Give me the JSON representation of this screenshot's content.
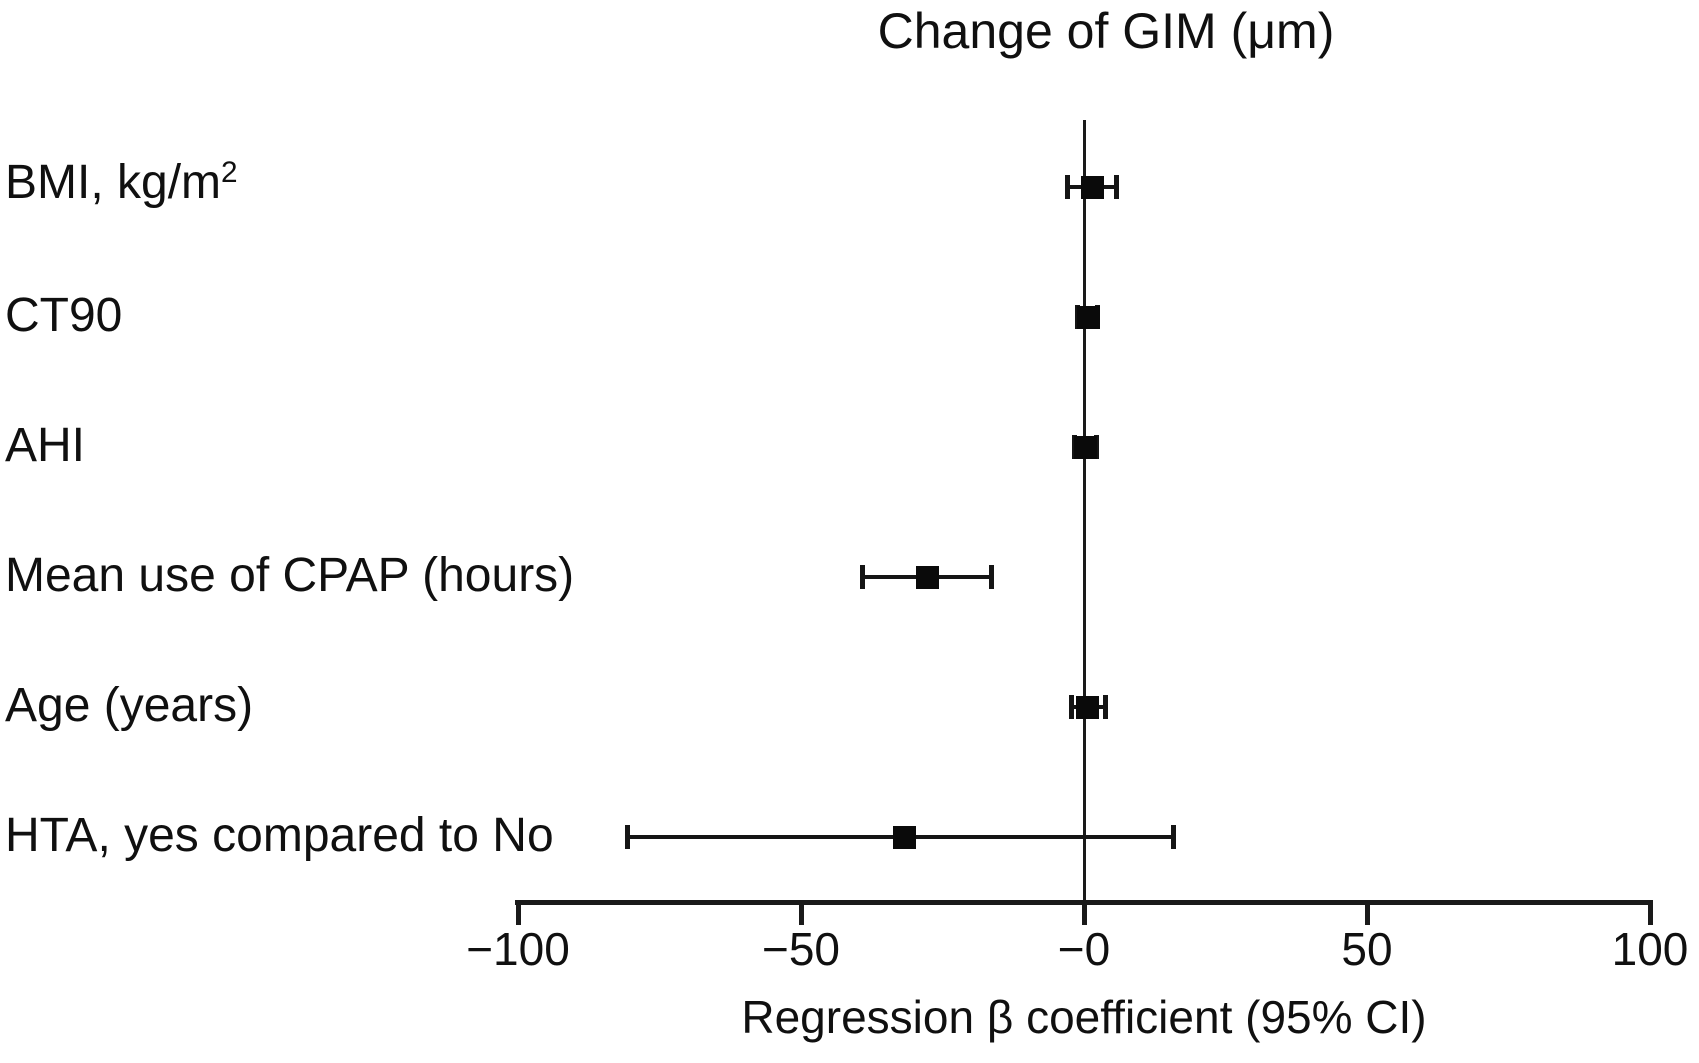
{
  "colors": {
    "ink": "#1a1a1a",
    "marker": "#0a0a0a",
    "background": "#ffffff"
  },
  "chart_data": {
    "type": "forest",
    "title": "Change of GIM (μm)",
    "xlabel": "Regression β coefficient (95% CI)",
    "xlim": [
      -100,
      100
    ],
    "x_ticks": [
      {
        "value": -100,
        "label": "−100"
      },
      {
        "value": -50,
        "label": "−50"
      },
      {
        "value": 0,
        "label": "−0"
      },
      {
        "value": 50,
        "label": "50"
      },
      {
        "value": 100,
        "label": "100"
      }
    ],
    "zero_reference_x": 0,
    "grid": false,
    "legend": "none",
    "rows": [
      {
        "label": "BMI, kg/m",
        "label_sup": "2",
        "beta": 1.5,
        "ci_low": -3.0,
        "ci_high": 5.8,
        "ci_within_marker": false
      },
      {
        "label": "CT90",
        "beta": 0.8,
        "ci_low": -1.2,
        "ci_high": 2.4,
        "ci_within_marker": true
      },
      {
        "label": "AHI",
        "beta": 0.3,
        "ci_low": -1.7,
        "ci_high": 2.2,
        "ci_within_marker": true
      },
      {
        "label": "Mean use of CPAP (hours)",
        "beta": -27.7,
        "ci_low": -39.1,
        "ci_high": -16.3,
        "ci_within_marker": false
      },
      {
        "label": "Age (years)",
        "beta": 0.7,
        "ci_low": -2.2,
        "ci_high": 3.8,
        "ci_within_marker": false
      },
      {
        "label": "HTA, yes compared to No",
        "beta": -31.8,
        "ci_low": -80.7,
        "ci_high": 15.9,
        "ci_within_marker": false
      }
    ]
  }
}
